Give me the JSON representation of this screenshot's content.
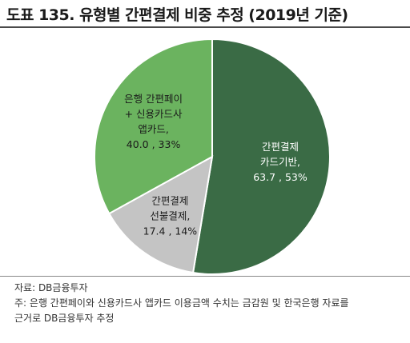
{
  "title": "도표 135. 유형별 간편결제 비중 추정 (2019년 기준)",
  "notes": {
    "source": "자료: DB금융투자",
    "note_line1": "주: 은행 간편페이와 신용카드사 앱카드 이용금액 수치는 금감원 및 한국은행 자료를",
    "note_line2": "근거로 DB금융투자 추정"
  },
  "chart_data": {
    "type": "pie",
    "title": "도표 135. 유형별 간편결제 비중 추정 (2019년 기준)",
    "slices": [
      {
        "name": "간편결제 카드기반",
        "value": 63.7,
        "percent": 53,
        "color": "#3a6b45",
        "label_lines": [
          "간편결제",
          "카드기반,",
          "63.7 , 53%"
        ]
      },
      {
        "name": "간편결제 선불결제",
        "value": 17.4,
        "percent": 14,
        "color": "#c4c4c4",
        "label_lines": [
          "간편결제",
          "선불결제,",
          "17.4 , 14%"
        ]
      },
      {
        "name": "은행 간편페이 + 신용카드사 앱카드",
        "value": 40.0,
        "percent": 33,
        "color": "#6bb35f",
        "label_lines": [
          "은행 간편페이",
          "+ 신용카드사",
          "앱카드,",
          "40.0 , 33%"
        ]
      }
    ]
  }
}
